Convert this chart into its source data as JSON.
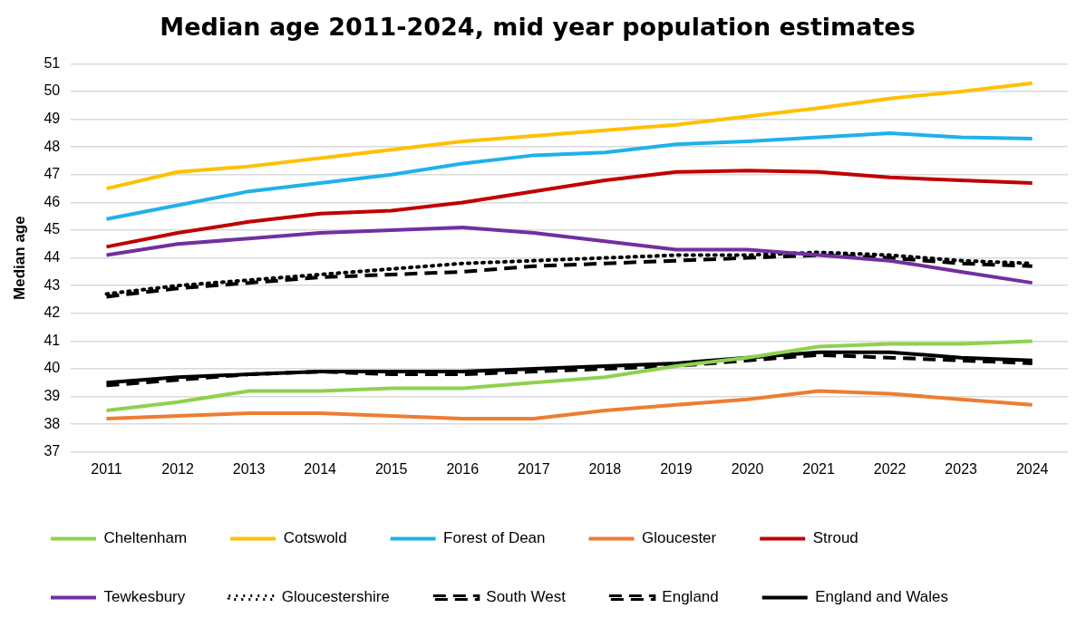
{
  "chart_data": {
    "type": "line",
    "title": "Median age 2011-2024, mid year population estimates",
    "ylabel": "Median age",
    "categories": [
      "2011",
      "2012",
      "2013",
      "2014",
      "2015",
      "2016",
      "2017",
      "2018",
      "2019",
      "2020",
      "2021",
      "2022",
      "2023",
      "2024"
    ],
    "ylim": [
      37,
      51
    ],
    "yticks": [
      37,
      38,
      39,
      40,
      41,
      42,
      43,
      44,
      45,
      46,
      47,
      48,
      49,
      50,
      51
    ],
    "grid": "y",
    "legend": "bottom",
    "marker": "none",
    "line_style": "solid",
    "series": [
      {
        "name": "Cheltenham",
        "color": "#8fd14f",
        "values": [
          38.5,
          38.8,
          39.2,
          39.2,
          39.3,
          39.3,
          39.5,
          39.7,
          40.1,
          40.4,
          40.8,
          40.9,
          40.9,
          41.0
        ]
      },
      {
        "name": "Cotswold",
        "color": "#ffc000",
        "values": [
          46.5,
          47.1,
          47.3,
          47.6,
          47.9,
          48.2,
          48.4,
          48.6,
          48.8,
          49.1,
          49.4,
          49.75,
          50.0,
          50.3
        ]
      },
      {
        "name": "Forest of Dean",
        "color": "#1fb1eb",
        "values": [
          45.4,
          45.9,
          46.4,
          46.7,
          47.0,
          47.4,
          47.7,
          47.8,
          48.1,
          48.2,
          48.35,
          48.5,
          48.35,
          48.3
        ]
      },
      {
        "name": "Gloucester",
        "color": "#ed7d31",
        "values": [
          38.2,
          38.3,
          38.4,
          38.4,
          38.3,
          38.2,
          38.2,
          38.5,
          38.7,
          38.9,
          39.2,
          39.1,
          38.9,
          38.7
        ]
      },
      {
        "name": "Stroud",
        "color": "#c00000",
        "values": [
          44.4,
          44.9,
          45.3,
          45.6,
          45.7,
          46.0,
          46.4,
          46.8,
          47.1,
          47.15,
          47.1,
          46.9,
          46.8,
          46.7
        ]
      },
      {
        "name": "Tewkesbury",
        "color": "#7030a0",
        "values": [
          44.1,
          44.5,
          44.7,
          44.9,
          45.0,
          45.1,
          44.9,
          44.6,
          44.3,
          44.3,
          44.1,
          43.9,
          43.5,
          43.1
        ]
      },
      {
        "name": "Gloucestershire",
        "color": "#000000",
        "line_style": "dotted",
        "values": [
          42.7,
          43.0,
          43.2,
          43.4,
          43.6,
          43.8,
          43.9,
          44.0,
          44.1,
          44.1,
          44.2,
          44.1,
          43.9,
          43.8
        ]
      },
      {
        "name": "South West",
        "color": "#000000",
        "line_style": "dashed",
        "values": [
          42.6,
          42.9,
          43.1,
          43.3,
          43.4,
          43.5,
          43.7,
          43.8,
          43.9,
          44.0,
          44.1,
          44.0,
          43.8,
          43.7
        ]
      },
      {
        "name": "England",
        "color": "#000000",
        "line_style": "dashed",
        "values": [
          39.4,
          39.6,
          39.8,
          39.9,
          39.8,
          39.8,
          39.9,
          40.0,
          40.1,
          40.3,
          40.5,
          40.4,
          40.3,
          40.2
        ]
      },
      {
        "name": "England and Wales",
        "color": "#000000",
        "values": [
          39.5,
          39.7,
          39.8,
          39.9,
          39.9,
          39.9,
          40.0,
          40.1,
          40.2,
          40.4,
          40.6,
          40.6,
          40.4,
          40.3
        ]
      }
    ]
  }
}
